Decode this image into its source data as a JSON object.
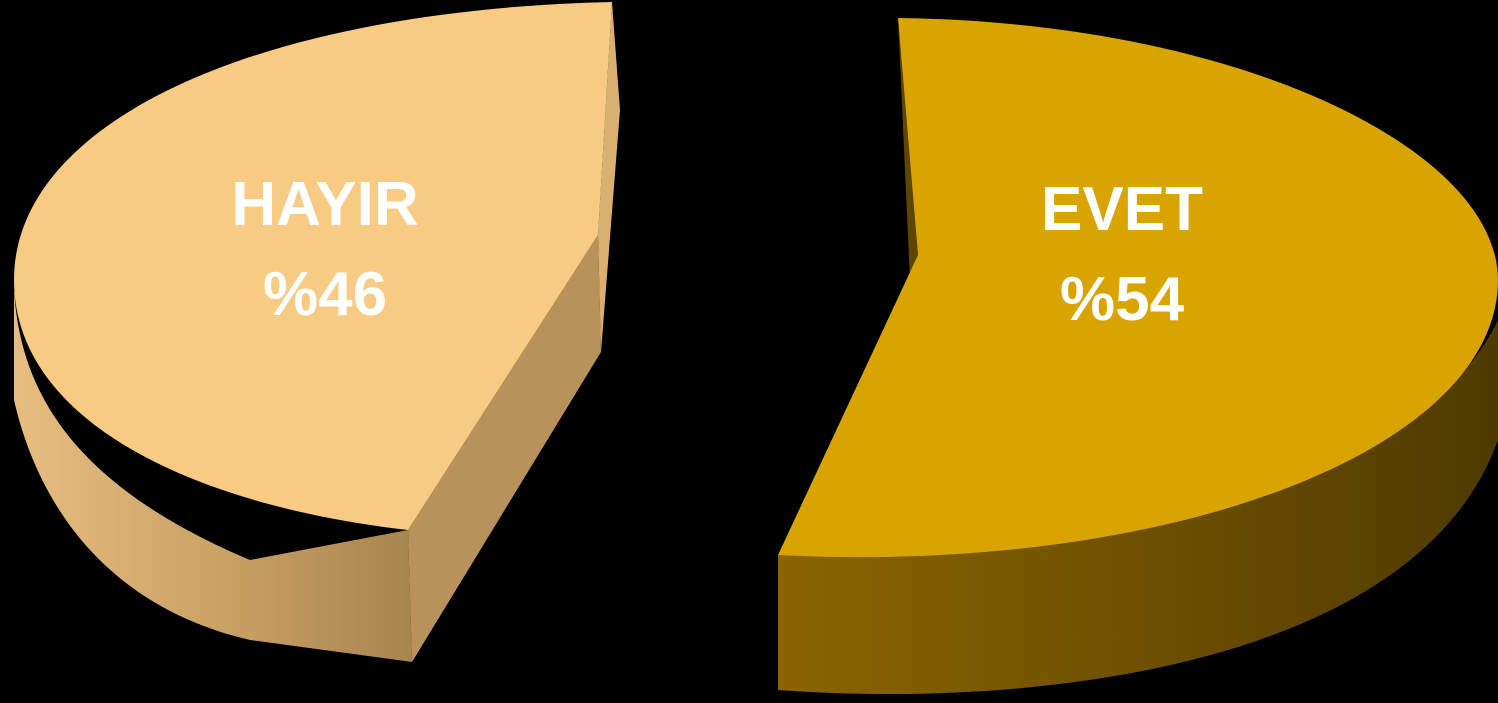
{
  "chart_data": {
    "type": "pie",
    "style": "3d-exploded",
    "title": "",
    "slices": [
      {
        "category": "HAYIR",
        "label": "%46",
        "value": 46,
        "color": "#F8CB84",
        "side_color": "#C9A064"
      },
      {
        "category": "EVET",
        "label": "%54",
        "value": 54,
        "color": "#D9A300",
        "side_color": "#7A5A00"
      }
    ]
  }
}
